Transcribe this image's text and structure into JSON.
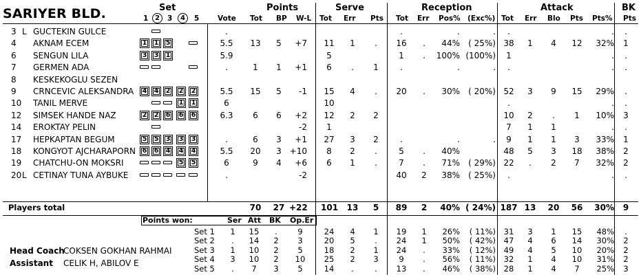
{
  "team": "SARIYER BLD.",
  "headers": {
    "set": "Set",
    "set_nums": [
      "1",
      "2",
      "3",
      "4",
      "5"
    ],
    "vote": "Vote",
    "points": "Points",
    "points_sub": [
      "Tot",
      "BP",
      "W-L"
    ],
    "serve": "Serve",
    "serve_sub": [
      "Tot",
      "Err",
      "Pts"
    ],
    "reception": "Reception",
    "reception_sub": [
      "Tot",
      "Err",
      "Pos%",
      "(Exc%)"
    ],
    "attack": "Attack",
    "attack_sub": [
      "Tot",
      "Err",
      "Blo",
      "Pts",
      "Pts%"
    ],
    "bk": "BK",
    "bk_sub": "Pts"
  },
  "players": [
    {
      "no": "3",
      "role": "L",
      "name": "GUCTEKIN GULCE",
      "sets": [
        "",
        "d",
        "",
        "",
        ""
      ],
      "vote": ".",
      "ptot": "",
      "pbp": "",
      "pwl": "",
      "stot": "",
      "serr": "",
      "spts": "",
      "rtot": ".",
      "rerr": "",
      "rpos": ".",
      "rexc": ".",
      "atot": ".",
      "aerr": "",
      "ablo": "",
      "apts": "",
      "apct": ".",
      "bk": "."
    },
    {
      "no": "4",
      "role": "",
      "name": "AKNAM ECEM",
      "sets": [
        "1",
        "1",
        "5",
        "",
        "d"
      ],
      "vote": "5.5",
      "ptot": "13",
      "pbp": "5",
      "pwl": "+7",
      "stot": "11",
      "serr": "1",
      "spts": ".",
      "rtot": "16",
      "rerr": ".",
      "rpos": "44%",
      "rexc": "( 25%)",
      "atot": "38",
      "aerr": "1",
      "ablo": "4",
      "apts": "12",
      "apct": "32%",
      "bk": "1"
    },
    {
      "no": "6",
      "role": "",
      "name": "SENGUN LILA",
      "sets": [
        "3",
        "3",
        "1",
        "",
        ""
      ],
      "vote": "5.9",
      "ptot": "",
      "pbp": "",
      "pwl": "",
      "stot": "5",
      "serr": "",
      "spts": "",
      "rtot": "1",
      "rerr": ".",
      "rpos": "100%",
      "rexc": "(100%)",
      "atot": "1",
      "aerr": "",
      "ablo": "",
      "apts": "",
      "apct": ".",
      "bk": "."
    },
    {
      "no": "7",
      "role": "",
      "name": "GERMEN ADA",
      "sets": [
        "d",
        "d",
        "",
        "",
        "d"
      ],
      "vote": ".",
      "ptot": "1",
      "pbp": "1",
      "pwl": "+1",
      "stot": "6",
      "serr": ".",
      "spts": "1",
      "rtot": ".",
      "rerr": "",
      "rpos": ".",
      "rexc": ".",
      "atot": ".",
      "aerr": "",
      "ablo": "",
      "apts": "",
      "apct": ".",
      "bk": "."
    },
    {
      "no": "8",
      "role": "",
      "name": "KESKEKOGLU SEZEN",
      "sets": [
        "",
        "",
        "",
        "",
        ""
      ],
      "vote": "",
      "ptot": "",
      "pbp": "",
      "pwl": "",
      "stot": "",
      "serr": "",
      "spts": "",
      "rtot": "",
      "rerr": "",
      "rpos": "",
      "rexc": "",
      "atot": "",
      "aerr": "",
      "ablo": "",
      "apts": "",
      "apct": "",
      "bk": ""
    },
    {
      "no": "9",
      "role": "",
      "name": "CRNCEVIC ALEKSANDRA",
      "sets": [
        "4",
        "4",
        "2",
        "2",
        "2"
      ],
      "vote": "5.5",
      "ptot": "15",
      "pbp": "5",
      "pwl": "-1",
      "stot": "15",
      "serr": "4",
      "spts": ".",
      "rtot": "20",
      "rerr": ".",
      "rpos": "30%",
      "rexc": "( 20%)",
      "atot": "52",
      "aerr": "3",
      "ablo": "9",
      "apts": "15",
      "apct": "29%",
      "bk": "."
    },
    {
      "no": "10",
      "role": "",
      "name": "TANIL MERVE",
      "sets": [
        "",
        "d",
        "d",
        "1",
        "1"
      ],
      "vote": "6",
      "ptot": "",
      "pbp": "",
      "pwl": "",
      "stot": "10",
      "serr": "",
      "spts": "",
      "rtot": "",
      "rerr": "",
      "rpos": "",
      "rexc": "",
      "atot": ".",
      "aerr": "",
      "ablo": "",
      "apts": "",
      "apct": ".",
      "bk": "."
    },
    {
      "no": "12",
      "role": "",
      "name": "SIMSEK HANDE NAZ",
      "sets": [
        "2",
        "2",
        "6",
        "6",
        "6"
      ],
      "vote": "6.3",
      "ptot": "6",
      "pbp": "6",
      "pwl": "+2",
      "stot": "12",
      "serr": "2",
      "spts": "2",
      "rtot": "",
      "rerr": "",
      "rpos": "",
      "rexc": "",
      "atot": "10",
      "aerr": "2",
      "ablo": ".",
      "apts": "1",
      "apct": "10%",
      "bk": "3"
    },
    {
      "no": "14",
      "role": "",
      "name": "EROKTAY PELIN",
      "sets": [
        "",
        "d",
        "",
        "",
        ""
      ],
      "vote": "",
      "ptot": "",
      "pbp": "",
      "pwl": "-2",
      "stot": "1",
      "serr": "",
      "spts": "",
      "rtot": "",
      "rerr": "",
      "rpos": "",
      "rexc": "",
      "atot": "7",
      "aerr": "1",
      "ablo": "1",
      "apts": "",
      "apct": ".",
      "bk": "."
    },
    {
      "no": "17",
      "role": "",
      "name": "HEPKAPTAN BEGUM",
      "sets": [
        "5",
        "5",
        "3",
        "3",
        "3"
      ],
      "vote": ".",
      "ptot": "6",
      "pbp": "3",
      "pwl": "+1",
      "stot": "27",
      "serr": "3",
      "spts": "2",
      "rtot": ".",
      "rerr": "",
      "rpos": ".",
      "rexc": ".",
      "atot": "9",
      "aerr": "1",
      "ablo": "1",
      "apts": "3",
      "apct": "33%",
      "bk": "1"
    },
    {
      "no": "18",
      "role": "",
      "name": "KONGYOT AJCHARAPORN",
      "sets": [
        "6",
        "6",
        "4",
        "4",
        "4"
      ],
      "vote": "5.5",
      "ptot": "20",
      "pbp": "3",
      "pwl": "+10",
      "stot": "8",
      "serr": "2",
      "spts": ".",
      "rtot": "5",
      "rerr": ".",
      "rpos": "40%",
      "rexc": "",
      "atot": "48",
      "aerr": "5",
      "ablo": "3",
      "apts": "18",
      "apct": "38%",
      "bk": "2"
    },
    {
      "no": "19",
      "role": "",
      "name": "CHATCHU-ON MOKSRI",
      "sets": [
        "d",
        "d",
        "d",
        "5",
        "5"
      ],
      "vote": "6",
      "ptot": "9",
      "pbp": "4",
      "pwl": "+6",
      "stot": "6",
      "serr": "1",
      "spts": ".",
      "rtot": "7",
      "rerr": ".",
      "rpos": "71%",
      "rexc": "( 29%)",
      "atot": "22",
      "aerr": ".",
      "ablo": "2",
      "apts": "7",
      "apct": "32%",
      "bk": "2"
    },
    {
      "no": "20",
      "role": "L",
      "name": "CETINAY TUNA AYBUKE",
      "sets": [
        "d",
        "d",
        "d",
        "d",
        "d"
      ],
      "vote": ".",
      "ptot": "",
      "pbp": "",
      "pwl": "-2",
      "stot": "",
      "serr": "",
      "spts": "",
      "rtot": "40",
      "rerr": "2",
      "rpos": "38%",
      "rexc": "( 25%)",
      "atot": ".",
      "aerr": "",
      "ablo": "",
      "apts": "",
      "apct": ".",
      "bk": "."
    }
  ],
  "totals": {
    "label": "Players total",
    "ptot": "70",
    "pbp": "27",
    "pwl": "+22",
    "stot": "101",
    "serr": "13",
    "spts": "5",
    "rtot": "89",
    "rerr": "2",
    "rpos": "40%",
    "rexc": "( 24%)",
    "atot": "187",
    "aerr": "13",
    "ablo": "20",
    "apts": "56",
    "apct": "30%",
    "bk": "9"
  },
  "points_won": {
    "label": "Points won:",
    "cols": [
      "Ser",
      "Att",
      "BK",
      "Op.Er"
    ]
  },
  "sets": [
    {
      "label": "Set 1",
      "ser": "1",
      "att": "15",
      "bk": ".",
      "oper": "9",
      "stot": "24",
      "serr": "4",
      "spts": "1",
      "rtot": "19",
      "rerr": "1",
      "rpos": "26%",
      "rexc": "( 11%)",
      "atot": "31",
      "aerr": "3",
      "ablo": "1",
      "apts": "15",
      "apct": "48%",
      "bk2": "."
    },
    {
      "label": "Set 2",
      "ser": ".",
      "att": "14",
      "bk": "2",
      "oper": "3",
      "stot": "20",
      "serr": "5",
      "spts": ".",
      "rtot": "24",
      "rerr": "1",
      "rpos": "50%",
      "rexc": "( 42%)",
      "atot": "47",
      "aerr": "4",
      "ablo": "6",
      "apts": "14",
      "apct": "30%",
      "bk2": "2"
    },
    {
      "label": "Set 3",
      "ser": "1",
      "att": "10",
      "bk": "2",
      "oper": "5",
      "stot": "18",
      "serr": "2",
      "spts": "1",
      "rtot": "24",
      "rerr": ".",
      "rpos": "33%",
      "rexc": "( 12%)",
      "atot": "49",
      "aerr": "4",
      "ablo": "5",
      "apts": "10",
      "apct": "20%",
      "bk2": "2"
    },
    {
      "label": "Set 4",
      "ser": "3",
      "att": "10",
      "bk": "2",
      "oper": "10",
      "stot": "25",
      "serr": "2",
      "spts": "3",
      "rtot": "9",
      "rerr": ".",
      "rpos": "56%",
      "rexc": "( 11%)",
      "atot": "32",
      "aerr": "1",
      "ablo": "4",
      "apts": "10",
      "apct": "31%",
      "bk2": "2"
    },
    {
      "label": "Set 5",
      "ser": ".",
      "att": "7",
      "bk": "3",
      "oper": "5",
      "stot": "14",
      "serr": ".",
      "spts": ".",
      "rtot": "13",
      "rerr": ".",
      "rpos": "46%",
      "rexc": "( 38%)",
      "atot": "28",
      "aerr": "1",
      "ablo": "4",
      "apts": "7",
      "apct": "25%",
      "bk2": "3"
    }
  ],
  "staff": {
    "head_coach_label": "Head Coach",
    "head_coach": "COKSEN GOKHAN RAHMAI",
    "assistant_label": "Assistant",
    "assistant": "CELIK H, ABILOV E"
  }
}
